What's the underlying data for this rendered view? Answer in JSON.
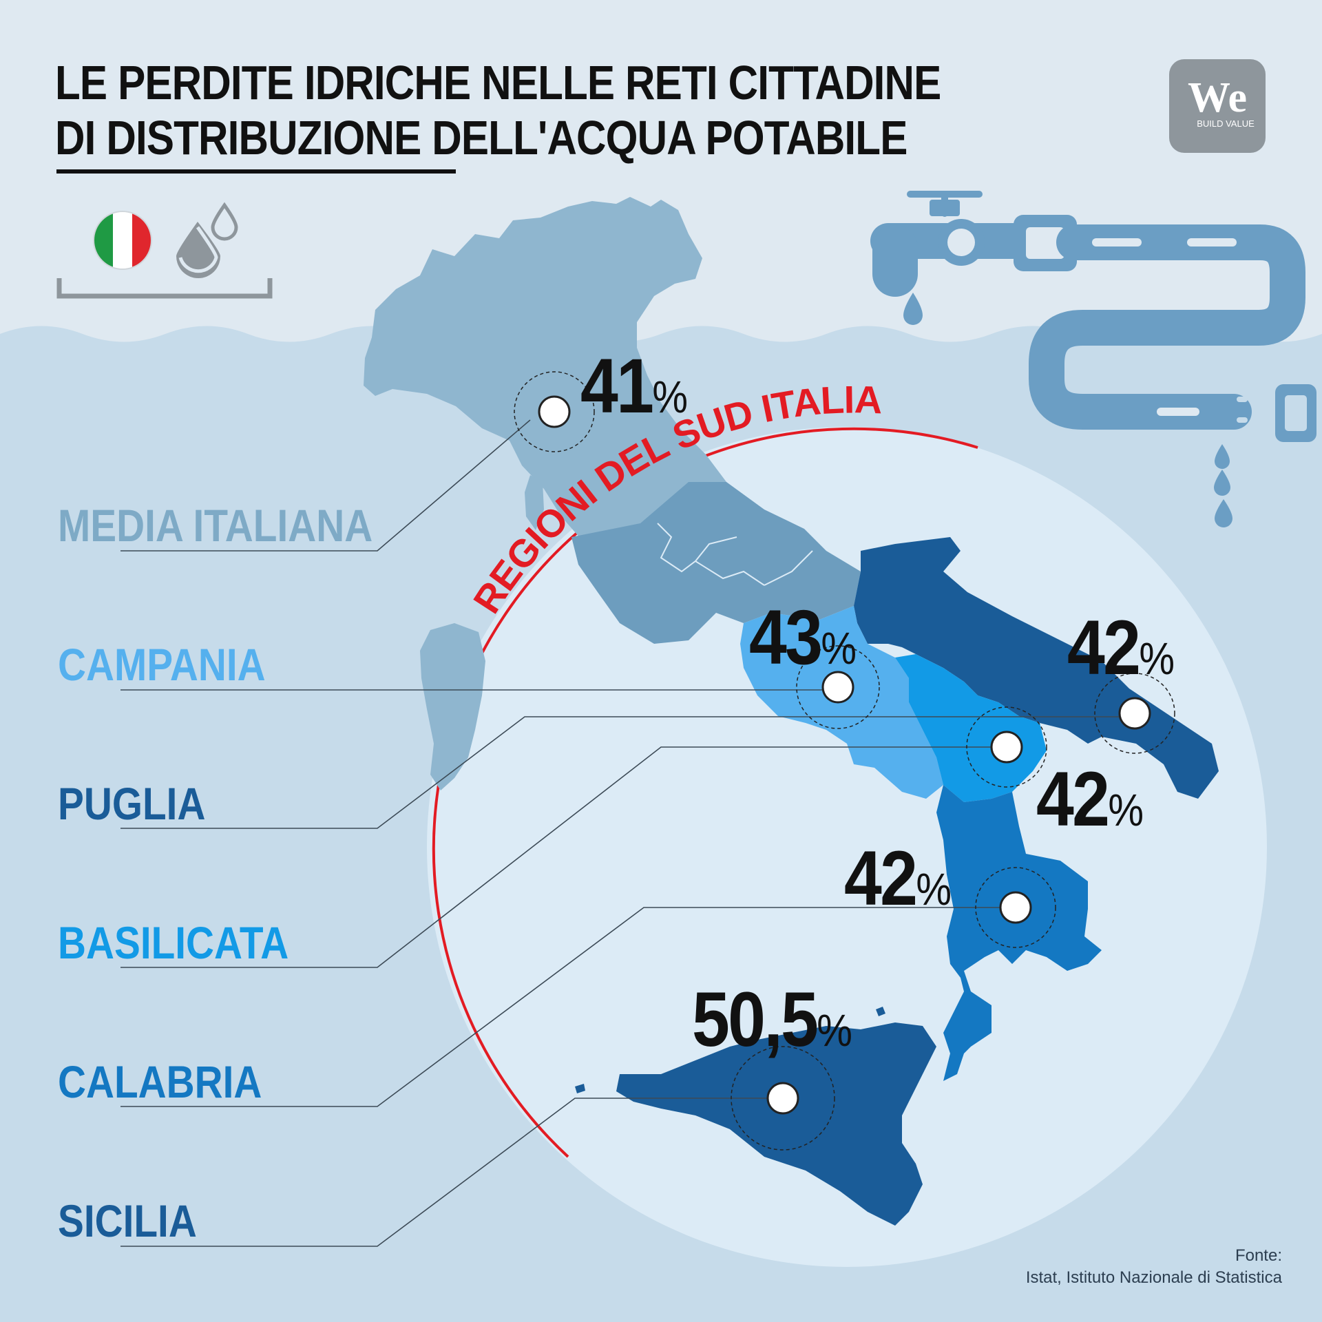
{
  "title": {
    "line1": "LE PERDITE IDRICHE NELLE RETI CITTADINE",
    "line2": "DI DISTRIBUZIONE DELL'ACQUA POTABILE"
  },
  "logo": {
    "main": "We",
    "sub": "BUILD VALUE"
  },
  "icons": [
    "italy-flag-icon",
    "water-drops-icon",
    "faucet-pipe-icon"
  ],
  "south_label": "REGIONI DEL SUD ITALIA",
  "percent_sign": "%",
  "regions": [
    {
      "name": "MEDIA ITALIANA",
      "value": "41",
      "color": "#7eaac6"
    },
    {
      "name": "CAMPANIA",
      "value": "43",
      "color": "#55b0ee"
    },
    {
      "name": "PUGLIA",
      "value": "42",
      "color": "#1a5c98"
    },
    {
      "name": "BASILICATA",
      "value": "42",
      "color": "#129ae6"
    },
    {
      "name": "CALABRIA",
      "value": "42",
      "color": "#1478c2"
    },
    {
      "name": "SICILIA",
      "value": "50,5",
      "color": "#1a5c98"
    }
  ],
  "source": {
    "label": "Fonte:",
    "text": "Istat, Istituto Nazionale di Statistica"
  },
  "colors": {
    "background_top": "#dfe9f1",
    "sea": "#c6dbea",
    "circle": "#dcebf6",
    "south_ring": "#e31b23",
    "north_map": "#8fb6cf",
    "center_map": "#6d9dbe",
    "pipe": "#6b9ec4"
  }
}
